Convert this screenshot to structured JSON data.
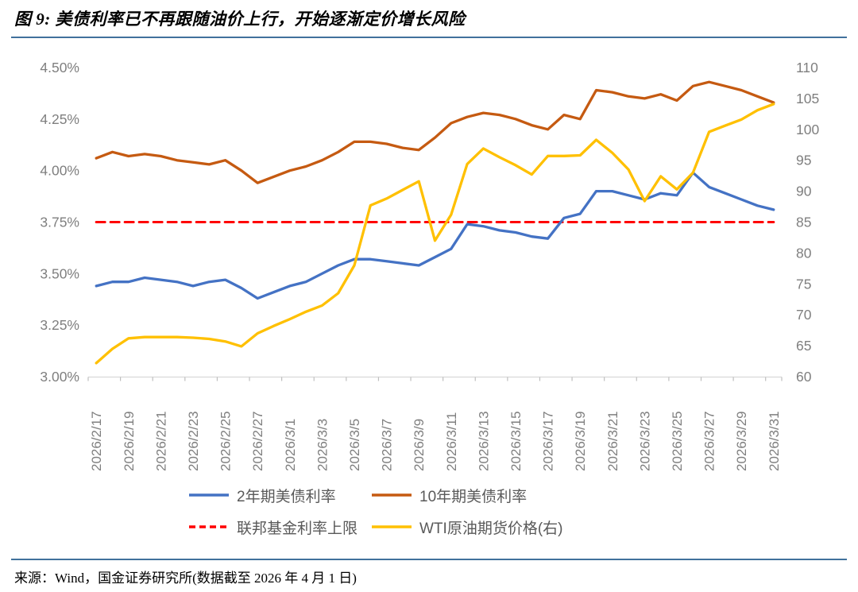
{
  "header": {
    "title": "图 9: 美债利率已不再跟随油价上行，开始逐渐定价增长风险"
  },
  "footer": {
    "source": "来源：Wind，国金证券研究所(数据截至 2026 年 4 月 1 日)"
  },
  "colors": {
    "divider": "#41719C",
    "axis_text": "#7F7F7F",
    "axis_line": "#D9D9D9",
    "tick_mark": "#BFBFBF",
    "legend_text": "#595959",
    "background": "#FFFFFF"
  },
  "chart_data": {
    "type": "line",
    "title": "图 9: 美债利率已不再跟随油价上行，开始逐渐定价增长风险",
    "grid": "off",
    "legend_position": "bottom",
    "left_axis": {
      "min": 3.0,
      "max": 4.5,
      "step": 0.25,
      "unit": "%",
      "tick_labels": [
        "4.50%",
        "4.25%",
        "4.00%",
        "3.75%",
        "3.50%",
        "3.25%",
        "3.00%"
      ]
    },
    "right_axis": {
      "min": 60,
      "max": 110,
      "step": 5,
      "tick_labels": [
        "110",
        "105",
        "100",
        "95",
        "90",
        "85",
        "80",
        "75",
        "70",
        "65",
        "60"
      ]
    },
    "x_tick_labels": [
      "2026/2/17",
      "2026/2/19",
      "2026/2/21",
      "2026/2/23",
      "2026/2/25",
      "2026/2/27",
      "2026/3/1",
      "2026/3/3",
      "2026/3/5",
      "2026/3/7",
      "2026/3/9",
      "2026/3/11",
      "2026/3/13",
      "2026/3/15",
      "2026/3/17",
      "2026/3/19",
      "2026/3/21",
      "2026/3/23",
      "2026/3/25",
      "2026/3/27",
      "2026/3/29",
      "2026/3/31"
    ],
    "dates": [
      "2026/2/17",
      "2026/2/18",
      "2026/2/19",
      "2026/2/20",
      "2026/2/21",
      "2026/2/22",
      "2026/2/23",
      "2026/2/24",
      "2026/2/25",
      "2026/2/26",
      "2026/2/27",
      "2026/2/28",
      "2026/3/1",
      "2026/3/2",
      "2026/3/3",
      "2026/3/4",
      "2026/3/5",
      "2026/3/6",
      "2026/3/7",
      "2026/3/8",
      "2026/3/9",
      "2026/3/10",
      "2026/3/11",
      "2026/3/12",
      "2026/3/13",
      "2026/3/14",
      "2026/3/15",
      "2026/3/16",
      "2026/3/17",
      "2026/3/18",
      "2026/3/19",
      "2026/3/20",
      "2026/3/21",
      "2026/3/22",
      "2026/3/23",
      "2026/3/24",
      "2026/3/25",
      "2026/3/26",
      "2026/3/27",
      "2026/3/28",
      "2026/3/29",
      "2026/3/30",
      "2026/3/31"
    ],
    "series": [
      {
        "name": "2年期美债利率",
        "axis": "left",
        "color": "#4472C4",
        "line": "solid",
        "values": [
          3.44,
          3.46,
          3.46,
          3.48,
          3.47,
          3.46,
          3.44,
          3.46,
          3.47,
          3.43,
          3.38,
          3.41,
          3.44,
          3.46,
          3.5,
          3.54,
          3.57,
          3.57,
          3.56,
          3.55,
          3.54,
          3.58,
          3.62,
          3.74,
          3.73,
          3.71,
          3.7,
          3.68,
          3.67,
          3.77,
          3.79,
          3.9,
          3.9,
          3.88,
          3.86,
          3.89,
          3.88,
          3.99,
          3.92,
          3.89,
          3.86,
          3.83,
          3.81
        ]
      },
      {
        "name": "10年期美债利率",
        "axis": "left",
        "color": "#C55A11",
        "line": "solid",
        "values": [
          4.06,
          4.09,
          4.07,
          4.08,
          4.07,
          4.05,
          4.04,
          4.03,
          4.05,
          4.0,
          3.94,
          3.97,
          4.0,
          4.02,
          4.05,
          4.09,
          4.14,
          4.14,
          4.13,
          4.11,
          4.1,
          4.16,
          4.23,
          4.26,
          4.28,
          4.27,
          4.25,
          4.22,
          4.2,
          4.27,
          4.25,
          4.39,
          4.38,
          4.36,
          4.35,
          4.37,
          4.34,
          4.41,
          4.43,
          4.41,
          4.39,
          4.36,
          4.33
        ]
      },
      {
        "name": "联邦基金利率上限",
        "axis": "left",
        "color": "#FF0000",
        "line": "dashed",
        "constant": 3.75
      },
      {
        "name": "WTI原油期货价格(右)",
        "axis": "right",
        "color": "#FFC000",
        "line": "solid",
        "values": [
          62.2,
          64.5,
          66.2,
          66.4,
          66.4,
          66.4,
          66.3,
          66.1,
          65.7,
          64.9,
          67.0,
          68.2,
          69.3,
          70.5,
          71.5,
          73.5,
          78.0,
          87.7,
          88.8,
          90.2,
          91.6,
          82.0,
          86.2,
          94.4,
          96.9,
          95.5,
          94.2,
          92.7,
          95.7,
          95.7,
          95.8,
          98.3,
          96.2,
          93.5,
          88.4,
          92.4,
          90.3,
          93.0,
          99.6,
          100.6,
          101.6,
          103.1,
          104.1
        ]
      }
    ]
  }
}
